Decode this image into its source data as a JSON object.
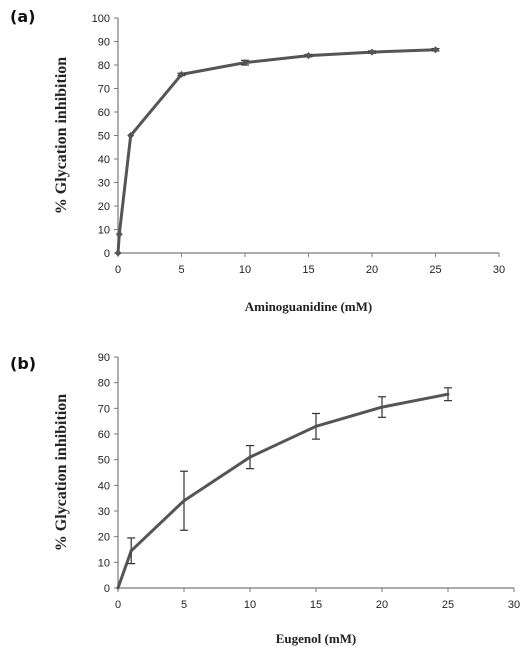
{
  "chart_data": [
    {
      "type": "line",
      "panel_label": "(a)",
      "xlabel": "Aminoguanidine (mM)",
      "ylabel": "% Glycation inhibition",
      "xlim": [
        0,
        30
      ],
      "ylim": [
        0,
        100
      ],
      "xticks": [
        0,
        5,
        10,
        15,
        20,
        25,
        30
      ],
      "yticks": [
        0,
        10,
        20,
        30,
        40,
        50,
        60,
        70,
        80,
        90,
        100
      ],
      "grid": false,
      "series": [
        {
          "x": [
            0,
            0.1,
            1,
            5,
            10,
            15,
            20,
            25
          ],
          "y": [
            0,
            8,
            50,
            76,
            81,
            84,
            85.5,
            86.5
          ],
          "err": [
            0,
            0,
            0,
            0.5,
            1,
            0.5,
            0.5,
            0.5
          ]
        }
      ]
    },
    {
      "type": "line",
      "panel_label": "(b)",
      "xlabel": "Eugenol (mM)",
      "ylabel": "% Glycation inhibition",
      "xlim": [
        0,
        30
      ],
      "ylim": [
        0,
        90
      ],
      "xticks": [
        0,
        5,
        10,
        15,
        20,
        25,
        30
      ],
      "yticks": [
        0,
        10,
        20,
        30,
        40,
        50,
        60,
        70,
        80,
        90
      ],
      "grid": false,
      "series": [
        {
          "x": [
            0,
            1,
            5,
            10,
            15,
            20,
            25
          ],
          "y": [
            0,
            14.5,
            34,
            51,
            63,
            70.5,
            75.5
          ],
          "err": [
            0,
            5,
            11.5,
            4.5,
            5,
            4,
            2.5
          ]
        }
      ]
    }
  ]
}
